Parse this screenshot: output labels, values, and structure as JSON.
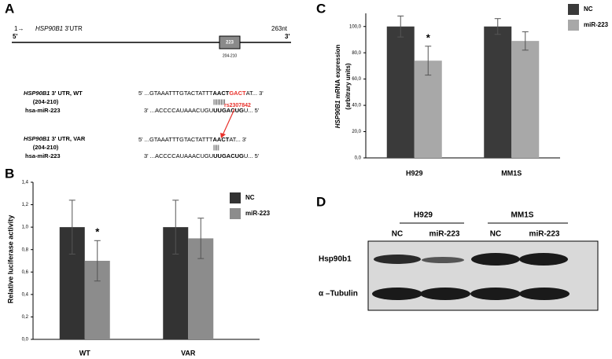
{
  "panels": {
    "a": "A",
    "b": "B",
    "c": "C",
    "d": "D"
  },
  "panel_a": {
    "start": "1→",
    "gene": "HSP90B1",
    "region": "3'UTR",
    "end": "263nt",
    "five": "5'",
    "three": "3'",
    "box": "223",
    "box_range": "204-210",
    "wt": {
      "label_gene": "HSP90B1",
      "label": "3' UTR, WT",
      "range": "(204-210)",
      "mirna": "hsa-miR-223",
      "target": [
        "5' ...GTAAATTTGTACTATTT",
        "AACT",
        "GACT",
        "AT... 3'"
      ],
      "pairing": "||||||||",
      "mirna_seq": [
        "3' ...ACCCCAUAAACUGU",
        "UUGACUG",
        "U... 5'"
      ]
    },
    "var": {
      "label_gene": "HSP90B1",
      "label": "3' UTR, VAR",
      "range": "(204-210)",
      "mirna": "hsa-miR-223",
      "snp": "rs2307842",
      "target": [
        "5' ...GTAAATTTGTACTATTT",
        "AACT",
        "AT... 3'"
      ],
      "pairing": "||||",
      "mirna_seq": [
        "3' ...ACCCCAUAAACUGU",
        "UUGACUG",
        "U... 5'"
      ]
    }
  },
  "chart_data": [
    {
      "type": "bar",
      "ylabel": "Relative luciferase activity",
      "categories": [
        "WT",
        "VAR"
      ],
      "series": [
        {
          "name": "NC",
          "color": "#333333",
          "values": [
            1.0,
            1.0
          ],
          "errors": [
            0.24,
            0.24
          ]
        },
        {
          "name": "miR-223",
          "color": "#8c8c8c",
          "values": [
            0.7,
            0.9
          ],
          "errors": [
            0.18,
            0.18
          ]
        }
      ],
      "annotations": [
        "*"
      ],
      "ylim": [
        0,
        1.4
      ],
      "yticks": [
        {
          "value": 0,
          "label": "0,0"
        },
        {
          "value": 0.2,
          "label": "0,2"
        },
        {
          "value": 0.4,
          "label": "0,4"
        },
        {
          "value": 0.6,
          "label": "0,6"
        },
        {
          "value": 0.8,
          "label": "0,8"
        },
        {
          "value": 1.0,
          "label": "1,0"
        },
        {
          "value": 1.2,
          "label": "1,2"
        },
        {
          "value": 1.4,
          "label": "1,4"
        }
      ]
    },
    {
      "type": "bar",
      "ylabel_gene": "HSP90B1",
      "ylabel": "mRNA expression",
      "ylabel_units": "(arbitrary units)",
      "categories": [
        "H929",
        "MM1S"
      ],
      "series": [
        {
          "name": "NC",
          "color": "#3a3a3a",
          "values": [
            100,
            100
          ],
          "errors": [
            8,
            6
          ]
        },
        {
          "name": "miR-223",
          "color": "#a8a8a8",
          "values": [
            74,
            89
          ],
          "errors": [
            11,
            7
          ]
        }
      ],
      "annotations": [
        "*"
      ],
      "ylim": [
        0,
        110
      ],
      "yticks": [
        {
          "value": 0,
          "label": "0,0"
        },
        {
          "value": 20,
          "label": "20,0"
        },
        {
          "value": 40,
          "label": "40,0"
        },
        {
          "value": 60,
          "label": "60,0"
        },
        {
          "value": 80,
          "label": "80,0"
        },
        {
          "value": 100,
          "label": "100,0"
        }
      ]
    }
  ],
  "panel_d": {
    "groups": [
      "H929",
      "MM1S"
    ],
    "lanes": [
      "NC",
      "miR-223",
      "NC",
      "miR-223"
    ],
    "rows": [
      "Hsp90b1",
      "α –Tubulin"
    ]
  }
}
